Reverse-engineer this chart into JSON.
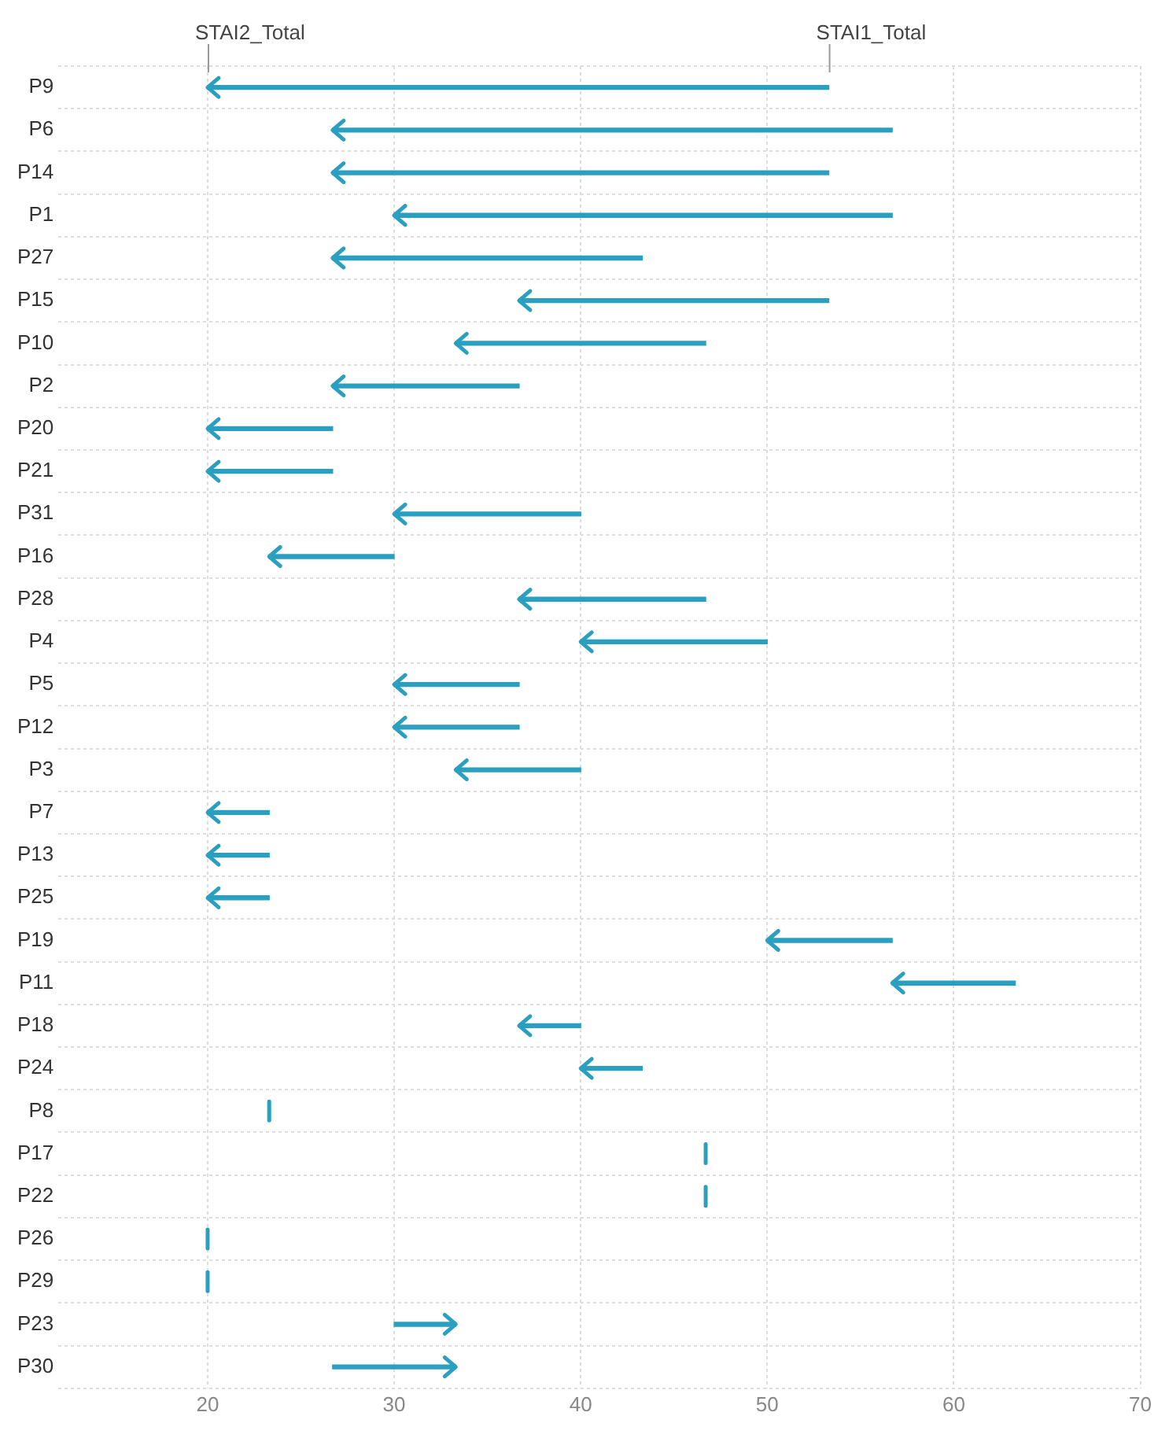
{
  "chart_data": {
    "type": "bar",
    "orientation": "horizontal",
    "categories": [
      "P9",
      "P6",
      "P14",
      "P1",
      "P27",
      "P15",
      "P10",
      "P2",
      "P20",
      "P21",
      "P31",
      "P16",
      "P28",
      "P4",
      "P5",
      "P12",
      "P3",
      "P7",
      "P13",
      "P25",
      "P19",
      "P11",
      "P18",
      "P24",
      "P8",
      "P17",
      "P22",
      "P26",
      "P29",
      "P23",
      "P30"
    ],
    "base": [
      53.3,
      56.7,
      53.3,
      56.7,
      43.3,
      53.3,
      46.7,
      36.7,
      26.7,
      26.7,
      40,
      30,
      46.7,
      50,
      36.7,
      36.7,
      40,
      23.3,
      23.3,
      23.3,
      56.7,
      63.3,
      40,
      43.3,
      23.3,
      46.7,
      46.7,
      20,
      20,
      30,
      26.7
    ],
    "values": [
      -33.3,
      -30,
      -26.6,
      -26.7,
      -16.6,
      -16.6,
      -13.4,
      -10,
      -6.7,
      -6.7,
      -10,
      -6.7,
      -10,
      -10,
      -6.7,
      -6.7,
      -6.7,
      -3.3,
      -3.3,
      -3.3,
      -6.7,
      -6.6,
      -3.3,
      -3.3,
      0,
      0,
      0,
      0,
      0,
      3.3,
      6.6
    ],
    "color": "#2a9fbf",
    "xlim": [
      12,
      70
    ],
    "xticks": [
      20,
      30,
      40,
      50,
      60,
      70
    ],
    "grid": true,
    "legend": false,
    "annotations": [
      {
        "text": "STAI2_Total",
        "x": 20,
        "y": "P9"
      },
      {
        "text": "STAI1_Total",
        "x": 53.3,
        "y": "P9"
      }
    ]
  }
}
